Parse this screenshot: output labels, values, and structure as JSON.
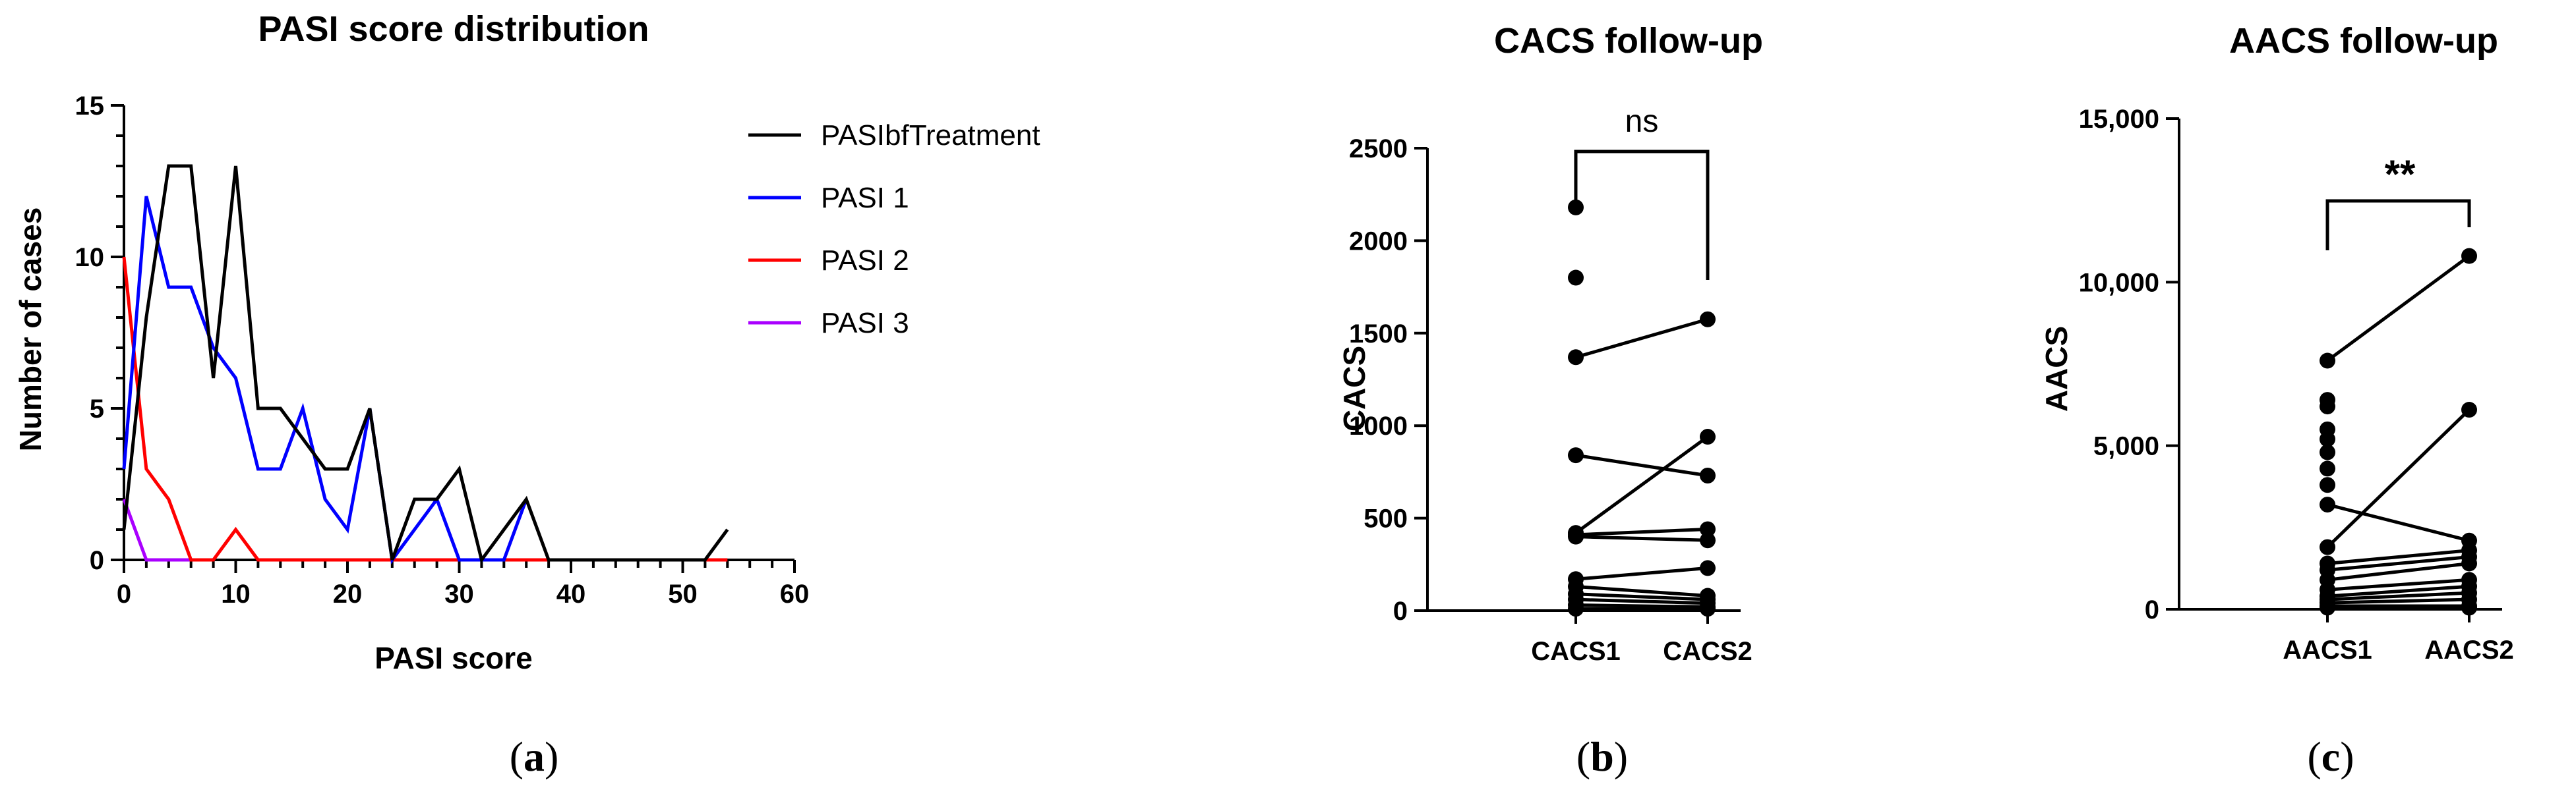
{
  "chart_data": [
    {
      "id": "a",
      "type": "line",
      "title": "PASI score distribution",
      "xlabel": "PASI score",
      "ylabel": "Number of cases",
      "xlim": [
        0,
        60
      ],
      "ylim": [
        0,
        15
      ],
      "xticks": [
        "0",
        "10",
        "20",
        "30",
        "40",
        "50",
        "60"
      ],
      "yticks": [
        "0",
        "5",
        "10",
        "15"
      ],
      "legend_position": "right",
      "caption": "a",
      "series": [
        {
          "name": "PASIbfTreatment",
          "color": "#000000",
          "x": [
            0,
            2,
            4,
            6,
            8,
            10,
            12,
            14,
            16,
            18,
            20,
            22,
            24,
            26,
            28,
            30,
            32,
            34,
            36,
            38,
            40,
            42,
            44,
            46,
            48,
            50,
            52,
            54
          ],
          "y": [
            1,
            8,
            13,
            13,
            6,
            13,
            5,
            5,
            4,
            3,
            3,
            5,
            0,
            2,
            2,
            3,
            0,
            1,
            2,
            0,
            0,
            0,
            0,
            0,
            0,
            0,
            0,
            1
          ]
        },
        {
          "name": "PASI 1",
          "color": "#0000ff",
          "x": [
            0,
            2,
            4,
            6,
            8,
            10,
            12,
            14,
            16,
            18,
            20,
            22,
            24,
            26,
            28,
            30,
            32,
            34,
            36
          ],
          "y": [
            3,
            12,
            9,
            9,
            7,
            6,
            3,
            3,
            5,
            2,
            1,
            5,
            0,
            1,
            2,
            0,
            0,
            0,
            2
          ]
        },
        {
          "name": "PASI 2",
          "color": "#ff0000",
          "x": [
            0,
            2,
            4,
            6,
            8,
            10,
            12,
            14,
            16,
            18,
            20,
            22,
            24,
            26,
            28,
            30,
            32,
            34,
            36,
            38,
            40,
            42,
            44,
            46,
            48,
            50,
            52,
            54
          ],
          "y": [
            10,
            3,
            2,
            0,
            0,
            1,
            0,
            0,
            0,
            0,
            0,
            0,
            0,
            0,
            0,
            0,
            0,
            0,
            0,
            0,
            0,
            0,
            0,
            0,
            0,
            0,
            0,
            0
          ]
        },
        {
          "name": "PASI 3",
          "color": "#aa00ff",
          "x": [
            0,
            2,
            4,
            6
          ],
          "y": [
            2,
            0,
            0,
            0
          ]
        }
      ]
    },
    {
      "id": "b",
      "type": "scatter",
      "title": "CACS follow-up",
      "ylabel": "CACS",
      "categories": [
        "CACS1",
        "CACS2"
      ],
      "ylim": [
        0,
        2500
      ],
      "yticks": [
        "0",
        "500",
        "1000",
        "1500",
        "2000",
        "2500"
      ],
      "significance": "ns",
      "caption": "b",
      "pairs": [
        [
          1370,
          1575
        ],
        [
          840,
          730
        ],
        [
          420,
          940
        ],
        [
          410,
          440
        ],
        [
          400,
          380
        ],
        [
          170,
          230
        ],
        [
          130,
          80
        ],
        [
          90,
          60
        ],
        [
          60,
          40
        ],
        [
          30,
          20
        ],
        [
          10,
          10
        ],
        [
          2180,
          null
        ],
        [
          1800,
          null
        ]
      ]
    },
    {
      "id": "c",
      "type": "scatter",
      "title": "AACS follow-up",
      "ylabel": "AACS",
      "categories": [
        "AACS1",
        "AACS2"
      ],
      "ylim": [
        0,
        15000
      ],
      "yticks": [
        "0",
        "5,000",
        "10,000",
        "15,000"
      ],
      "significance": "**",
      "caption": "c",
      "pairs": [
        [
          7600,
          10800
        ],
        [
          1900,
          6100
        ],
        [
          3200,
          2100
        ],
        [
          1400,
          1800
        ],
        [
          1200,
          1600
        ],
        [
          900,
          1400
        ],
        [
          600,
          900
        ],
        [
          400,
          700
        ],
        [
          300,
          500
        ],
        [
          200,
          300
        ],
        [
          100,
          100
        ],
        [
          50,
          50
        ],
        [
          6400,
          null
        ],
        [
          6200,
          null
        ],
        [
          5500,
          null
        ],
        [
          5200,
          null
        ],
        [
          4800,
          null
        ],
        [
          4300,
          null
        ],
        [
          3800,
          null
        ]
      ]
    }
  ]
}
